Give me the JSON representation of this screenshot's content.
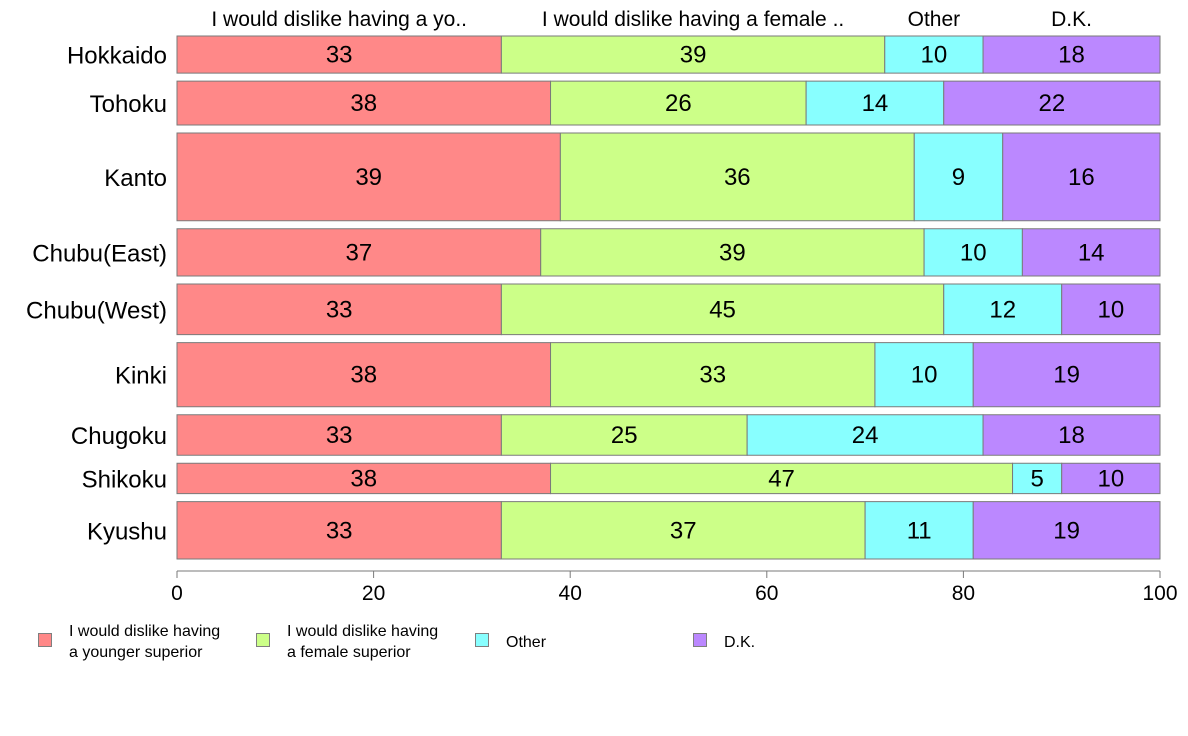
{
  "chart_data": {
    "type": "bar",
    "orientation": "horizontal",
    "stacked": true,
    "categories": [
      "Hokkaido",
      "Tohoku",
      "Kanto",
      "Chubu(East)",
      "Chubu(West)",
      "Kinki",
      "Chugoku",
      "Shikoku",
      "Kyushu"
    ],
    "category_weights": [
      1.1,
      1.3,
      2.6,
      1.4,
      1.5,
      1.9,
      1.2,
      0.9,
      1.7
    ],
    "series": [
      {
        "name": "I would dislike having a younger superior",
        "header_label": "I would dislike having a yo..",
        "legend_label": "I would dislike having\na younger superior",
        "color": "#FF8888",
        "values": [
          33,
          38,
          39,
          37,
          33,
          38,
          33,
          38,
          33
        ]
      },
      {
        "name": "I would dislike having a female superior",
        "header_label": "I would dislike having a female ..",
        "legend_label": "I would dislike having\na female superior",
        "color": "#CCFF88",
        "values": [
          39,
          26,
          36,
          39,
          45,
          33,
          25,
          47,
          37
        ]
      },
      {
        "name": "Other",
        "header_label": "Other",
        "legend_label": "Other",
        "color": "#88FFFF",
        "values": [
          10,
          14,
          9,
          10,
          12,
          10,
          24,
          5,
          11
        ]
      },
      {
        "name": "D.K.",
        "header_label": "D.K.",
        "legend_label": "D.K.",
        "color": "#BB88FF",
        "values": [
          18,
          22,
          16,
          14,
          10,
          19,
          18,
          10,
          19
        ]
      }
    ],
    "xlim": [
      0,
      100
    ],
    "xticks": [
      0,
      20,
      40,
      60,
      80,
      100
    ],
    "title": "",
    "xlabel": "",
    "ylabel": "",
    "grid": false,
    "legend_position": "bottom-left"
  }
}
